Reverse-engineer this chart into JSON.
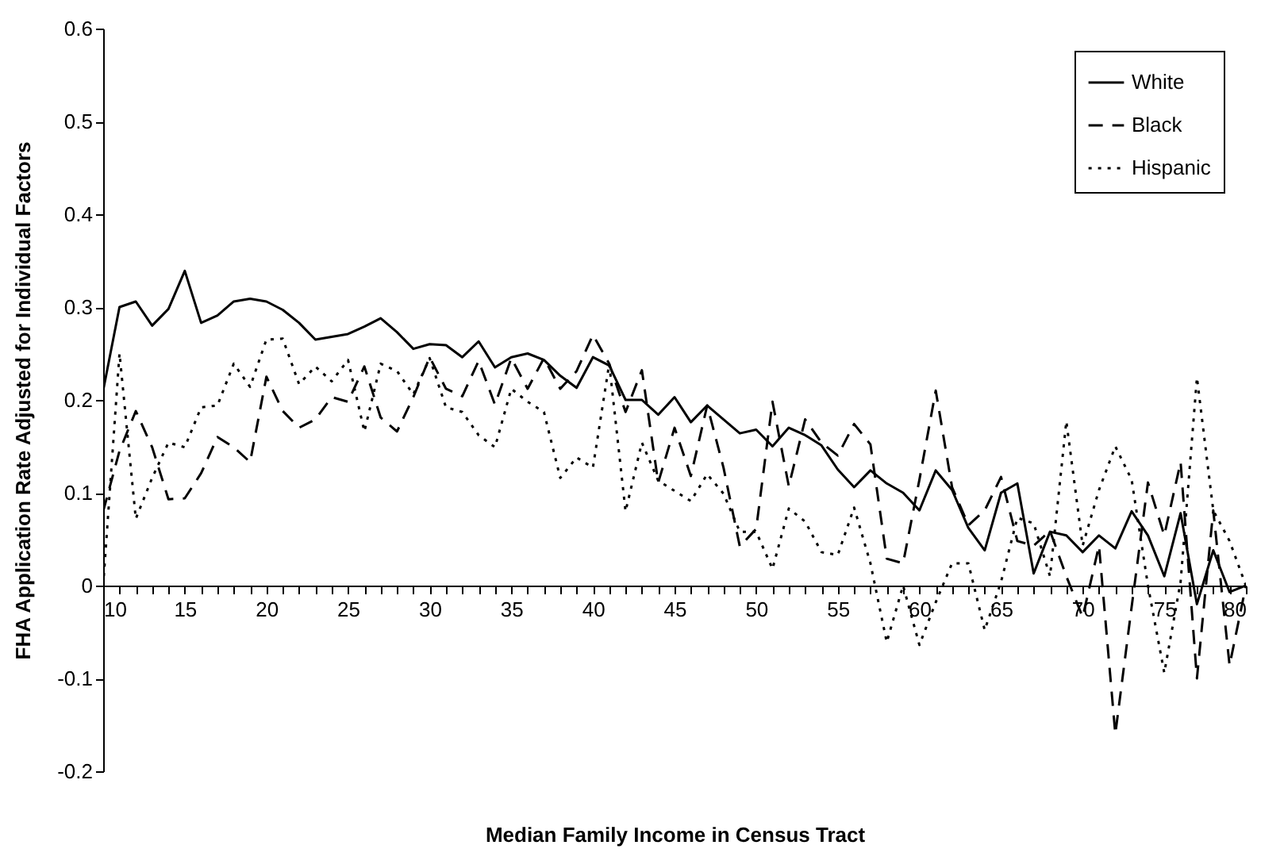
{
  "chart_data": {
    "type": "line",
    "xlabel": "Median Family Income in Census Tract",
    "ylabel": "FHA Application Rate Adjusted for Individual Factors",
    "x": [
      10,
      11,
      12,
      13,
      14,
      15,
      16,
      17,
      18,
      19,
      20,
      21,
      22,
      23,
      24,
      25,
      26,
      27,
      28,
      29,
      30,
      31,
      32,
      33,
      34,
      35,
      36,
      37,
      38,
      39,
      40,
      41,
      42,
      43,
      44,
      45,
      46,
      47,
      48,
      49,
      50,
      51,
      52,
      53,
      54,
      55,
      56,
      57,
      58,
      59,
      60,
      61,
      62,
      63,
      64,
      65,
      66,
      67,
      68,
      69,
      70,
      71,
      72,
      73,
      74,
      75,
      76,
      77,
      78,
      79,
      80
    ],
    "series": [
      {
        "name": "White",
        "color": "#000000",
        "line_style": "solid",
        "values": [
          0.21,
          0.3,
          0.306,
          0.28,
          0.298,
          0.339,
          0.283,
          0.291,
          0.306,
          0.309,
          0.306,
          0.297,
          0.283,
          0.265,
          0.268,
          0.271,
          0.279,
          0.288,
          0.273,
          0.255,
          0.26,
          0.259,
          0.246,
          0.263,
          0.235,
          0.246,
          0.25,
          0.243,
          0.226,
          0.213,
          0.246,
          0.237,
          0.2,
          0.2,
          0.184,
          0.203,
          0.176,
          0.194,
          0.179,
          0.164,
          0.168,
          0.15,
          0.17,
          0.162,
          0.151,
          0.125,
          0.106,
          0.124,
          0.11,
          0.1,
          0.081,
          0.124,
          0.103,
          0.062,
          0.038,
          0.1,
          0.11,
          0.013,
          0.058,
          0.054,
          0.036,
          0.054,
          0.04,
          0.08,
          0.054,
          0.01,
          0.078,
          -0.02,
          0.038,
          -0.007,
          0
        ]
      },
      {
        "name": "Black",
        "color": "#000000",
        "line_style": "dashed",
        "values": [
          0.08,
          0.145,
          0.188,
          0.149,
          0.093,
          0.094,
          0.121,
          0.16,
          0.149,
          0.133,
          0.225,
          0.188,
          0.17,
          0.179,
          0.203,
          0.198,
          0.236,
          0.181,
          0.166,
          0.203,
          0.246,
          0.212,
          0.204,
          0.242,
          0.195,
          0.245,
          0.212,
          0.245,
          0.212,
          0.231,
          0.27,
          0.239,
          0.187,
          0.232,
          0.111,
          0.17,
          0.118,
          0.194,
          0.127,
          0.042,
          0.061,
          0.198,
          0.107,
          0.179,
          0.154,
          0.14,
          0.174,
          0.152,
          0.029,
          0.024,
          0.114,
          0.21,
          0.106,
          0.065,
          0.081,
          0.117,
          0.048,
          0.043,
          0.059,
          0.01,
          -0.034,
          0.043,
          -0.16,
          -0.023,
          0.111,
          0.054,
          0.133,
          -0.1,
          0.081,
          -0.086,
          0
        ]
      },
      {
        "name": "Hispanic",
        "color": "#000000",
        "line_style": "dotted",
        "values": [
          0,
          0.25,
          0.072,
          0.116,
          0.154,
          0.149,
          0.192,
          0.194,
          0.239,
          0.214,
          0.265,
          0.266,
          0.217,
          0.236,
          0.22,
          0.243,
          0.166,
          0.239,
          0.231,
          0.206,
          0.245,
          0.192,
          0.187,
          0.162,
          0.149,
          0.212,
          0.198,
          0.187,
          0.116,
          0.138,
          0.127,
          0.239,
          0.08,
          0.154,
          0.113,
          0.102,
          0.091,
          0.12,
          0.099,
          0.058,
          0.058,
          0.018,
          0.083,
          0.069,
          0.036,
          0.033,
          0.084,
          0.024,
          -0.061,
          0,
          -0.064,
          -0.018,
          0.024,
          0.024,
          -0.048,
          0.004,
          0.073,
          0.067,
          0.01,
          0.177,
          0.043,
          0.103,
          0.15,
          0.114,
          0,
          -0.094,
          0.004,
          0.224,
          0.081,
          0.048,
          0
        ]
      }
    ],
    "xlim": [
      10,
      80
    ],
    "xticks": [
      10,
      {
        "value": 11,
        "label": null
      },
      {
        "value": 12,
        "label": null
      },
      {
        "value": 13,
        "label": null
      },
      {
        "value": 14,
        "label": null
      },
      15,
      {
        "value": 16,
        "label": null
      },
      {
        "value": 17,
        "label": null
      },
      {
        "value": 18,
        "label": null
      },
      {
        "value": 19,
        "label": null
      },
      20,
      {
        "value": 21,
        "label": null
      },
      {
        "value": 22,
        "label": null
      },
      {
        "value": 23,
        "label": null
      },
      {
        "value": 24,
        "label": null
      },
      25,
      {
        "value": 26,
        "label": null
      },
      {
        "value": 27,
        "label": null
      },
      {
        "value": 28,
        "label": null
      },
      {
        "value": 29,
        "label": null
      },
      30,
      {
        "value": 31,
        "label": null
      },
      {
        "value": 32,
        "label": null
      },
      {
        "value": 33,
        "label": null
      },
      {
        "value": 34,
        "label": null
      },
      35,
      {
        "value": 36,
        "label": null
      },
      {
        "value": 37,
        "label": null
      },
      {
        "value": 38,
        "label": null
      },
      {
        "value": 39,
        "label": null
      },
      40,
      {
        "value": 41,
        "label": null
      },
      {
        "value": 42,
        "label": null
      },
      {
        "value": 43,
        "label": null
      },
      {
        "value": 44,
        "label": null
      },
      45,
      {
        "value": 46,
        "label": null
      },
      {
        "value": 47,
        "label": null
      },
      {
        "value": 48,
        "label": null
      },
      {
        "value": 49,
        "label": null
      },
      50,
      {
        "value": 51,
        "label": null
      },
      {
        "value": 52,
        "label": null
      },
      {
        "value": 53,
        "label": null
      },
      {
        "value": 54,
        "label": null
      },
      55,
      {
        "value": 56,
        "label": null
      },
      {
        "value": 57,
        "label": null
      },
      {
        "value": 58,
        "label": null
      },
      {
        "value": 59,
        "label": null
      },
      60,
      {
        "value": 61,
        "label": null
      },
      {
        "value": 62,
        "label": null
      },
      {
        "value": 63,
        "label": null
      },
      {
        "value": 64,
        "label": null
      },
      65,
      {
        "value": 66,
        "label": null
      },
      {
        "value": 67,
        "label": null
      },
      {
        "value": 68,
        "label": null
      },
      {
        "value": 69,
        "label": null
      },
      70,
      {
        "value": 71,
        "label": null
      },
      {
        "value": 72,
        "label": null
      },
      {
        "value": 73,
        "label": null
      },
      {
        "value": 74,
        "label": null
      },
      75,
      {
        "value": 76,
        "label": null
      },
      {
        "value": 77,
        "label": null
      },
      {
        "value": 78,
        "label": null
      },
      {
        "value": 79,
        "label": null
      },
      80
    ],
    "ylim": [
      -0.2,
      0.6
    ],
    "yticks": [
      -0.2,
      -0.1,
      0,
      0.1,
      0.2,
      0.3,
      0.4,
      0.5,
      0.6
    ],
    "grid": false,
    "legend": "top right",
    "marker": "none"
  }
}
